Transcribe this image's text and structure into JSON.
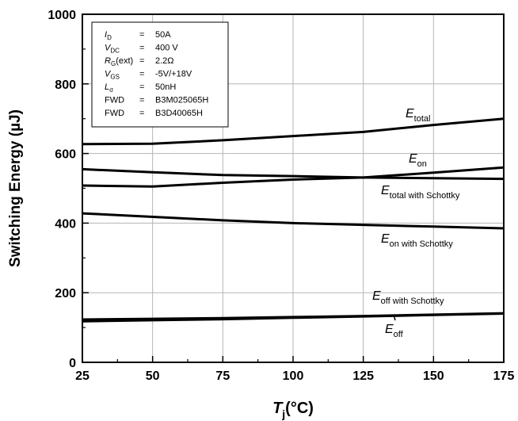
{
  "chart_data": {
    "type": "line",
    "xlabel": {
      "main": "T",
      "sub": "j",
      "rest": "(°C)"
    },
    "ylabel": "Switching Energy (µJ)",
    "xlim": [
      25,
      175
    ],
    "ylim": [
      0,
      1000
    ],
    "x_ticks": [
      "25",
      "50",
      "75",
      "100",
      "125",
      "150",
      "175"
    ],
    "y_ticks": [
      "0",
      "200",
      "400",
      "600",
      "800",
      "1000"
    ],
    "grid": true,
    "series": [
      {
        "name": {
          "main": "E",
          "sub": "total"
        },
        "x": [
          25,
          50,
          75,
          100,
          125,
          150,
          175
        ],
        "y": [
          627,
          628,
          638,
          650,
          662,
          682,
          700
        ]
      },
      {
        "name": {
          "main": "E",
          "sub": "on"
        },
        "x": [
          25,
          50,
          75,
          100,
          125,
          150,
          175
        ],
        "y": [
          508,
          505,
          516,
          525,
          531,
          545,
          560
        ]
      },
      {
        "name": {
          "main": "E",
          "sub": "total with Schottky"
        },
        "x": [
          25,
          50,
          75,
          100,
          125,
          150,
          175
        ],
        "y": [
          555,
          546,
          538,
          535,
          531,
          529,
          527
        ]
      },
      {
        "name": {
          "main": "E",
          "sub": "on with Schottky"
        },
        "x": [
          25,
          50,
          75,
          100,
          125,
          150,
          175
        ],
        "y": [
          428,
          418,
          408,
          400,
          395,
          390,
          385
        ]
      },
      {
        "name": {
          "main": "E",
          "sub": "off with Schottky"
        },
        "x": [
          25,
          50,
          75,
          100,
          125,
          150,
          175
        ],
        "y": [
          123,
          125,
          127,
          130,
          133,
          137,
          141
        ]
      },
      {
        "name": {
          "main": "E",
          "sub": "off"
        },
        "x": [
          25,
          50,
          75,
          100,
          125,
          150,
          175
        ],
        "y": [
          118,
          121,
          124,
          128,
          132,
          136,
          140
        ]
      }
    ],
    "legend_box": {
      "placement": "top-left",
      "rows": [
        {
          "sym": "I",
          "sub": "D",
          "eq": "=",
          "val": "50A"
        },
        {
          "sym": "V",
          "sub": "DC",
          "eq": "=",
          "val": "400 V"
        },
        {
          "sym": "R",
          "sub": "G",
          "suffix": "(ext)",
          "eq": "=",
          "val": "2.2Ω"
        },
        {
          "sym": "V",
          "sub": "GS",
          "eq": "=",
          "val": "-5V/+18V"
        },
        {
          "sym": "L",
          "sub": "σ",
          "eq": "=",
          "val": "50nH"
        },
        {
          "sym": "FWD",
          "sub": "",
          "eq": "=",
          "val": "B3M025065H"
        },
        {
          "sym": "FWD",
          "sub": "",
          "eq": "=",
          "val": "B3D40065H"
        }
      ]
    }
  }
}
